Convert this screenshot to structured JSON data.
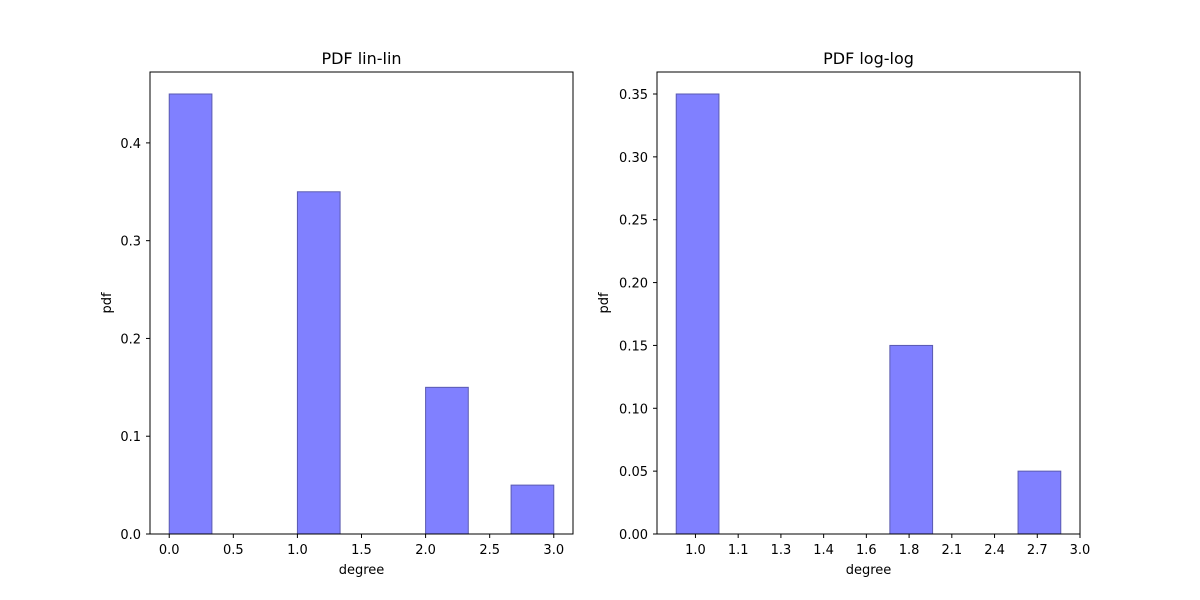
{
  "chart_data": [
    {
      "type": "bar",
      "subtype": "histogram",
      "title": "PDF lin-lin",
      "xlabel": "degree",
      "ylabel": "pdf",
      "xlim": [
        -0.15,
        3.15
      ],
      "ylim": [
        0,
        0.4725
      ],
      "x_ticks": [
        "0.0",
        "0.5",
        "1.0",
        "1.5",
        "2.0",
        "2.5",
        "3.0"
      ],
      "x_tick_values": [
        0.0,
        0.5,
        1.0,
        1.5,
        2.0,
        2.5,
        3.0
      ],
      "y_ticks": [
        "0.0",
        "0.1",
        "0.2",
        "0.3",
        "0.4"
      ],
      "y_tick_values": [
        0.0,
        0.1,
        0.2,
        0.3,
        0.4
      ],
      "bins": [
        {
          "x0": 0.0,
          "x1": 0.333,
          "value": 0.45
        },
        {
          "x0": 1.0,
          "x1": 1.333,
          "value": 0.35
        },
        {
          "x0": 2.0,
          "x1": 2.333,
          "value": 0.15
        },
        {
          "x0": 2.667,
          "x1": 3.0,
          "value": 0.05
        }
      ],
      "bar_color": "#8080ff",
      "edge_color": "#5a5ab0",
      "grid": false,
      "legend": "none"
    },
    {
      "type": "bar",
      "subtype": "histogram",
      "title": "PDF log-log",
      "xlabel": "degree",
      "ylabel": "pdf",
      "x_ticks": [
        "1.0",
        "1.1",
        "1.3",
        "1.4",
        "1.6",
        "1.8",
        "2.1",
        "2.4",
        "2.7",
        "3.0"
      ],
      "y_ticks": [
        "0.00",
        "0.05",
        "0.10",
        "0.15",
        "0.20",
        "0.25",
        "0.30",
        "0.35"
      ],
      "y_tick_values": [
        0.0,
        0.05,
        0.1,
        0.15,
        0.2,
        0.25,
        0.3,
        0.35
      ],
      "ylim": [
        0,
        0.3675
      ],
      "bins": [
        {
          "x0": 0.0,
          "x1": 1.0,
          "value": 0.35
        },
        {
          "x0": 5.0,
          "x1": 6.0,
          "value": 0.15
        },
        {
          "x0": 8.0,
          "x1": 9.0,
          "value": 0.05
        }
      ],
      "xlim": [
        -0.45,
        9.45
      ],
      "x_tick_values": [
        0.45,
        1.45,
        2.45,
        3.45,
        4.45,
        5.45,
        6.45,
        7.45,
        8.45,
        9.45
      ],
      "bar_color": "#8080ff",
      "edge_color": "#5a5ab0",
      "grid": false,
      "legend": "none"
    }
  ]
}
